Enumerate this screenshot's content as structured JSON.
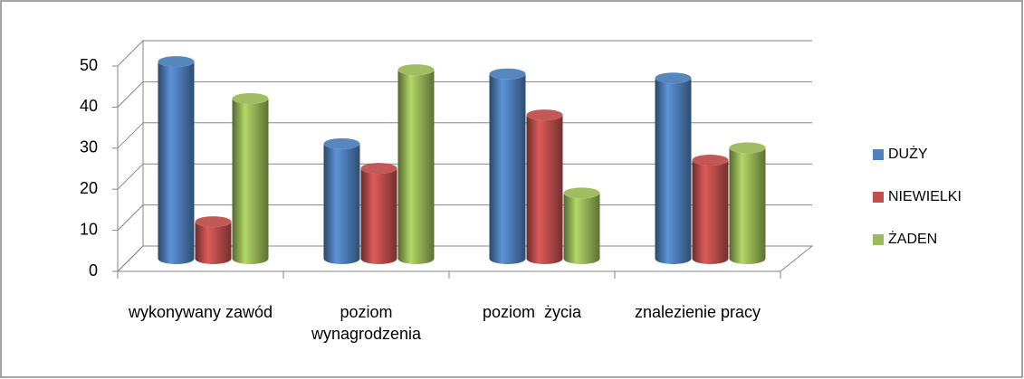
{
  "chart_data": {
    "type": "bar3d",
    "categories": [
      "wykonywany zawód",
      "poziom wynagrodzenia",
      "poziom  życia",
      "znalezienie pracy"
    ],
    "series": [
      {
        "name": "DUŻY",
        "color": "#4f81bd",
        "values": [
          48,
          28,
          45,
          44
        ]
      },
      {
        "name": "NIEWIELKI",
        "color": "#c0504d",
        "values": [
          9,
          22,
          35,
          24
        ]
      },
      {
        "name": "ŻADEN",
        "color": "#9bbb59",
        "values": [
          39,
          46,
          16,
          27
        ]
      }
    ],
    "ylim": [
      0,
      50
    ],
    "yticks": [
      0,
      10,
      20,
      30,
      40,
      50
    ],
    "grid": true,
    "legend": "right"
  }
}
